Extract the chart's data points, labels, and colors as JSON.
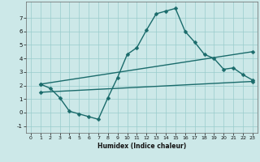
{
  "title": "",
  "xlabel": "Humidex (Indice chaleur)",
  "bg_color": "#cce8e8",
  "grid_color": "#99cccc",
  "line_color": "#1a6b6b",
  "markersize": 2.5,
  "linewidth": 1.0,
  "xlim": [
    -0.5,
    23.5
  ],
  "ylim": [
    -1.5,
    8.2
  ],
  "xticks": [
    0,
    1,
    2,
    3,
    4,
    5,
    6,
    7,
    8,
    9,
    10,
    11,
    12,
    13,
    14,
    15,
    16,
    17,
    18,
    19,
    20,
    21,
    22,
    23
  ],
  "yticks": [
    -1,
    0,
    1,
    2,
    3,
    4,
    5,
    6,
    7
  ],
  "line1_x": [
    1,
    2,
    3,
    4,
    5,
    6,
    7,
    8,
    9,
    10,
    11,
    12,
    13,
    14,
    15,
    16,
    17,
    18,
    19,
    20,
    21,
    22,
    23
  ],
  "line1_y": [
    2.1,
    1.8,
    1.1,
    0.1,
    -0.1,
    -0.3,
    -0.5,
    1.1,
    2.6,
    4.3,
    4.8,
    6.1,
    7.3,
    7.5,
    7.7,
    6.0,
    5.2,
    4.3,
    4.0,
    3.2,
    3.3,
    2.8,
    2.4
  ],
  "line2_x": [
    1,
    23
  ],
  "line2_y": [
    2.1,
    4.5
  ],
  "line3_x": [
    1,
    23
  ],
  "line3_y": [
    1.5,
    2.3
  ]
}
